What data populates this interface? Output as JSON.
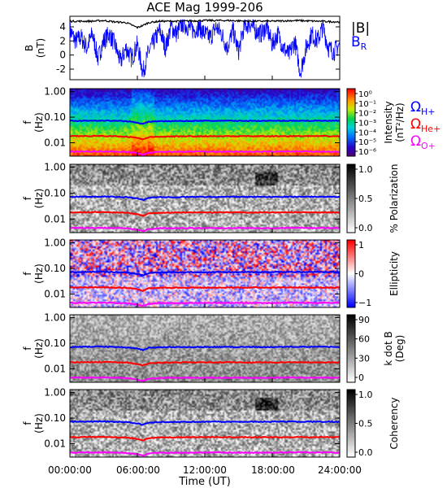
{
  "title": "ACE Mag 1999-206",
  "chart_data": [
    {
      "type": "line",
      "panel": "field",
      "ylabel": "B (nT)",
      "ylim": [
        -3.5,
        5.5
      ],
      "yticks": [
        4,
        2,
        0,
        -2
      ],
      "xlim": [
        0,
        24
      ],
      "series": [
        {
          "name": "|B|",
          "color": "#000000",
          "x": [
            0,
            2,
            3,
            4,
            5,
            6,
            6.5,
            7,
            8,
            10,
            12,
            14,
            16,
            18,
            20,
            22,
            24
          ],
          "y": [
            4.8,
            4.8,
            4.9,
            4.7,
            4.6,
            3.9,
            4.2,
            4.6,
            4.8,
            4.8,
            4.9,
            4.9,
            4.8,
            4.8,
            4.9,
            4.8,
            4.7
          ]
        },
        {
          "name": "B_R",
          "color": "#0000ff",
          "x": [
            0,
            0.5,
            1,
            1.5,
            2,
            2.5,
            3,
            3.5,
            4,
            4.5,
            5,
            5.5,
            6,
            6.5,
            7,
            7.5,
            8,
            8.5,
            9,
            9.5,
            10,
            10.5,
            11,
            11.5,
            12,
            12.5,
            13,
            13.5,
            14,
            14.5,
            15,
            15.5,
            16,
            16.5,
            17,
            17.5,
            18,
            18.5,
            19,
            19.5,
            20,
            20.5,
            21,
            21.5,
            22,
            22.5,
            23,
            23.5,
            24
          ],
          "y": [
            3.5,
            2.0,
            2.5,
            1.0,
            3.0,
            -0.5,
            2.0,
            3.0,
            1.5,
            -1.0,
            1.0,
            -0.5,
            1.5,
            -2.5,
            0.5,
            2.0,
            3.5,
            1.0,
            4.0,
            3.0,
            4.5,
            4.0,
            3.5,
            4.0,
            3.0,
            2.5,
            4.0,
            3.0,
            1.0,
            3.5,
            0.5,
            4.0,
            4.5,
            3.5,
            3.0,
            4.0,
            1.5,
            3.0,
            1.0,
            0.0,
            2.0,
            -2.5,
            1.0,
            3.0,
            2.0,
            4.0,
            1.0,
            0.5,
            1.5
          ]
        }
      ]
    },
    {
      "type": "heatmap",
      "panel": "intensity",
      "ylabel": "f (Hz)",
      "yscale": "log",
      "ylim": [
        0.003,
        1.3
      ],
      "yticks": [
        "1.00",
        "0.10",
        "0.01"
      ],
      "colorbar": {
        "label": "Intensity (nT²/Hz)",
        "ticks": [
          "10⁰",
          "10⁻¹",
          "10⁻²",
          "10⁻³",
          "10⁻⁴",
          "10⁻⁵",
          "10⁻⁶"
        ],
        "colormap": "rainbow"
      }
    },
    {
      "type": "heatmap",
      "panel": "polarization",
      "ylabel": "f (Hz)",
      "yscale": "log",
      "yticks": [
        "1.00",
        "0.10",
        "0.01"
      ],
      "colorbar": {
        "label": "% Polarization",
        "ticks": [
          "1.0",
          "0.5",
          "0.0"
        ],
        "colormap": "gray"
      }
    },
    {
      "type": "heatmap",
      "panel": "ellipticity",
      "ylabel": "f (Hz)",
      "yscale": "log",
      "yticks": [
        "1.00",
        "0.10",
        "0.01"
      ],
      "colorbar": {
        "label": "Ellipticity",
        "ticks": [
          "1",
          "0",
          "−1"
        ],
        "colormap": "blue-white-red"
      }
    },
    {
      "type": "heatmap",
      "panel": "kdotb",
      "ylabel": "f (Hz)",
      "yscale": "log",
      "yticks": [
        "1.00",
        "0.10",
        "0.01"
      ],
      "colorbar": {
        "label": "k dot B (Deg)",
        "ticks": [
          "90",
          "60",
          "30",
          "0"
        ],
        "colormap": "gray"
      }
    },
    {
      "type": "heatmap",
      "panel": "coherency",
      "ylabel": "f (Hz)",
      "yscale": "log",
      "yticks": [
        "1.00",
        "0.10",
        "0.01"
      ],
      "colorbar": {
        "label": "Coherency",
        "ticks": [
          "1.0",
          "0.5",
          "0.0"
        ],
        "colormap": "gray"
      }
    }
  ],
  "gyrofrequency_lines": [
    {
      "name": "Ω_H+",
      "color": "#0000ff",
      "x": [
        0,
        3,
        5,
        6,
        6.5,
        7,
        8,
        10,
        12,
        14,
        16,
        18,
        20,
        24
      ],
      "y": [
        0.072,
        0.074,
        0.07,
        0.062,
        0.054,
        0.066,
        0.07,
        0.071,
        0.072,
        0.072,
        0.072,
        0.072,
        0.073,
        0.072
      ]
    },
    {
      "name": "Ω_He+",
      "color": "#ff0000",
      "x": [
        0,
        3,
        5,
        6,
        6.5,
        7,
        8,
        10,
        12,
        14,
        16,
        18,
        20,
        24
      ],
      "y": [
        0.018,
        0.0185,
        0.0175,
        0.0155,
        0.0135,
        0.0165,
        0.0175,
        0.0178,
        0.018,
        0.018,
        0.018,
        0.018,
        0.0182,
        0.018
      ]
    },
    {
      "name": "Ω_O+",
      "color": "#ff00ff",
      "x": [
        0,
        3,
        5,
        6,
        6.5,
        7,
        8,
        10,
        12,
        14,
        16,
        18,
        20,
        24
      ],
      "y": [
        0.0045,
        0.0046,
        0.0044,
        0.0039,
        0.0034,
        0.0041,
        0.0044,
        0.0045,
        0.0045,
        0.0045,
        0.0045,
        0.0045,
        0.0046,
        0.0045
      ]
    }
  ],
  "xaxis": {
    "label": "Time (UT)",
    "ticks": [
      "00:00:00",
      "06:00:00",
      "12:00:00",
      "18:00:00",
      "24:00:00"
    ]
  },
  "legend": {
    "field": [
      "|B|",
      "B",
      "R"
    ],
    "ion": [
      {
        "sym": "Ω",
        "sub": "H+",
        "color": "#0000ff"
      },
      {
        "sym": "Ω",
        "sub": "He+",
        "color": "#ff0000"
      },
      {
        "sym": "Ω",
        "sub": "O+",
        "color": "#ff00ff"
      }
    ]
  }
}
